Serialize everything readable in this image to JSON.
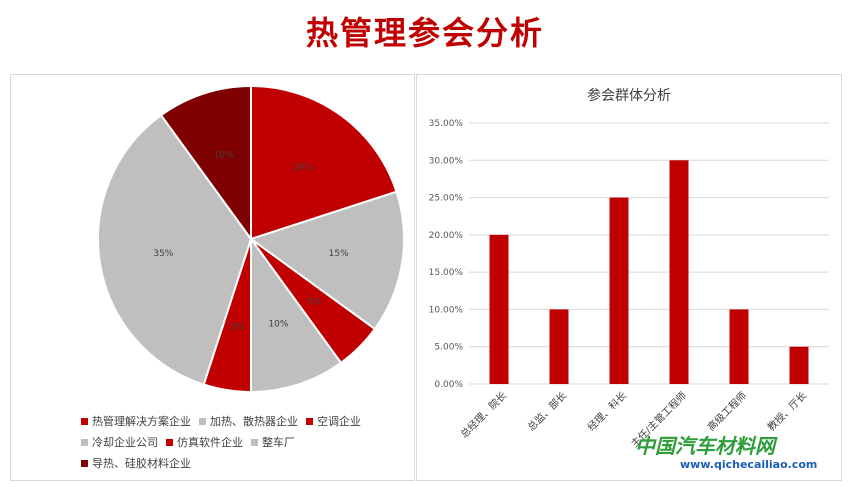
{
  "page": {
    "title": "热管理参会分析"
  },
  "chart_data": [
    {
      "type": "pie",
      "title": "",
      "labels": [
        "热管理解决方案企业",
        "加热、散热器企业",
        "空调企业",
        "冷却企业公司",
        "仿真软件企业",
        "整车厂",
        "导热、硅胶材料企业"
      ],
      "values": [
        20,
        15,
        5,
        10,
        5,
        35,
        10
      ],
      "value_labels": [
        "20%",
        "15%",
        "5%",
        "10%",
        "5%",
        "35%",
        "10%"
      ],
      "colors": [
        "#c00000",
        "#bfbfbf",
        "#c00000",
        "#bfbfbf",
        "#c00000",
        "#bfbfbf",
        "#7f0000"
      ],
      "legend_position": "bottom"
    },
    {
      "type": "bar",
      "title": "参会群体分析",
      "categories": [
        "总经理、院长",
        "总监、部长",
        "经理、科长",
        "主任/主管工程师",
        "高级工程师",
        "教授、厅长"
      ],
      "values": [
        20,
        10,
        25,
        30,
        10,
        5
      ],
      "ylim": [
        0,
        35
      ],
      "y_ticks": [
        "0.00%",
        "5.00%",
        "10.00%",
        "15.00%",
        "20.00%",
        "25.00%",
        "30.00%",
        "35.00%"
      ],
      "color": "#c00000",
      "grid": true
    }
  ],
  "watermark": {
    "name": "中国汽车材料网",
    "url": "www.qichecailiao.com"
  }
}
